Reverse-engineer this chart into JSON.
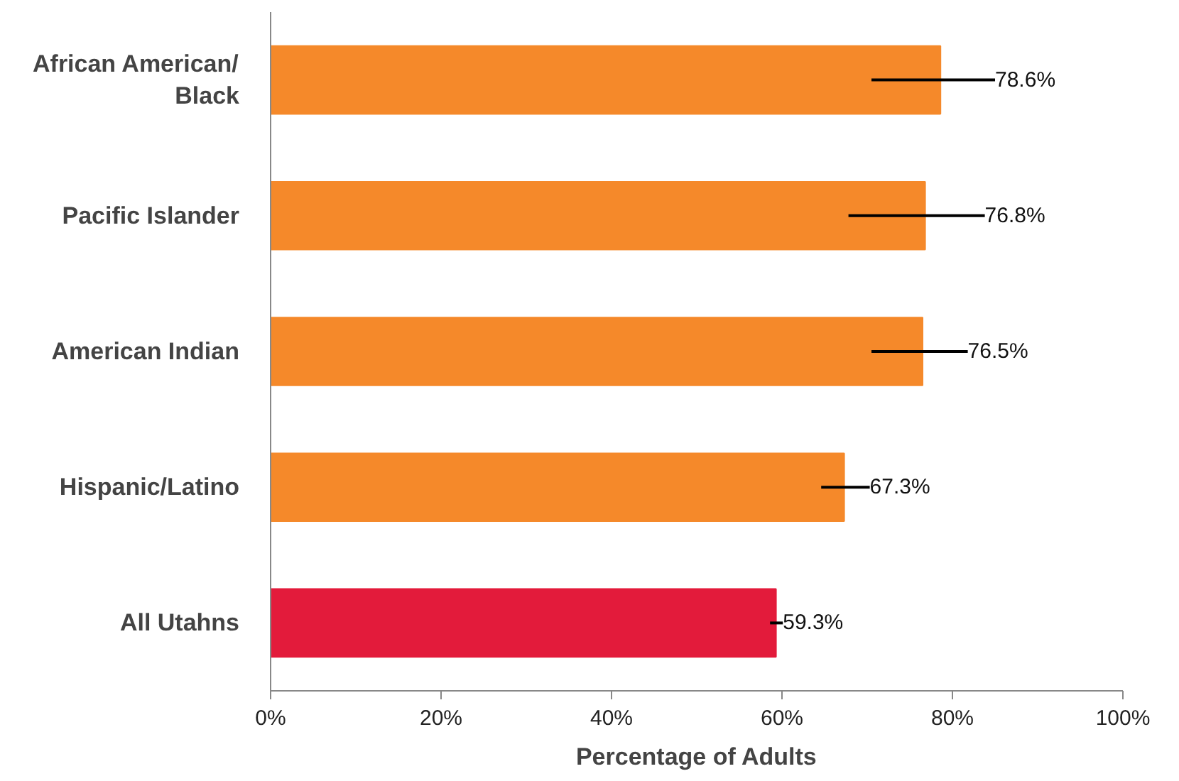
{
  "chart_data": {
    "type": "bar",
    "orientation": "horizontal",
    "xlabel": "Percentage of Adults",
    "categories": [
      "African American/\nBlack",
      "Pacific Islander",
      "American Indian",
      "Hispanic/Latino",
      "All Utahns"
    ],
    "values": [
      78.6,
      76.8,
      76.5,
      67.3,
      59.3
    ],
    "colors": [
      "#f5892a",
      "#f5892a",
      "#f5892a",
      "#f5892a",
      "#e31b3b"
    ],
    "errors": [
      [
        70.5,
        85.0
      ],
      [
        67.8,
        83.8
      ],
      [
        70.5,
        81.8
      ],
      [
        64.6,
        70.3
      ],
      [
        58.6,
        60.1
      ]
    ],
    "value_labels": [
      "78.6%",
      "76.8%",
      "76.5%",
      "67.3%",
      "59.3%"
    ],
    "xlim": [
      0,
      100
    ],
    "xticks": [
      {
        "value": 0,
        "label": "0%"
      },
      {
        "value": 20,
        "label": "20%"
      },
      {
        "value": 40,
        "label": "40%"
      },
      {
        "value": 60,
        "label": "60%"
      },
      {
        "value": 80,
        "label": "80%"
      },
      {
        "value": 100,
        "label": "100%"
      }
    ],
    "grid": false
  }
}
